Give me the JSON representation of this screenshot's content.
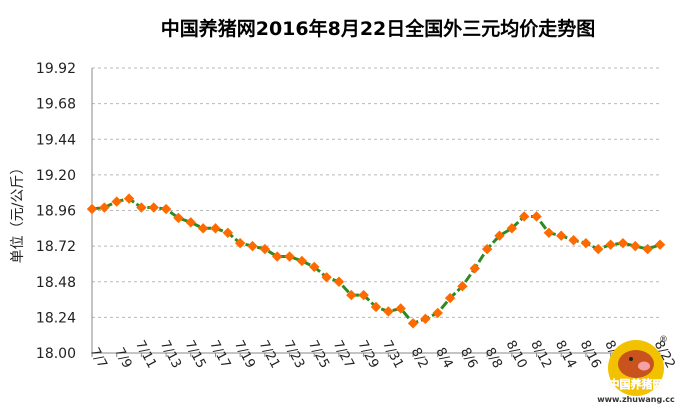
{
  "chart_data": {
    "type": "line",
    "title": "中国养猪网2016年8月22日全国外三元均价走势图",
    "ylabel": "单位（元/公斤）",
    "xlabel": "",
    "ylim": [
      18.0,
      19.92
    ],
    "yticks": [
      "18.00",
      "18.24",
      "18.48",
      "18.72",
      "18.96",
      "19.20",
      "19.44",
      "19.68",
      "19.92"
    ],
    "grid": true,
    "line_color": "#2e8b1f",
    "marker_color": "#ff6a00",
    "categories": [
      "7/7",
      "7/8",
      "7/9",
      "7/10",
      "7/11",
      "7/12",
      "7/13",
      "7/14",
      "7/15",
      "7/16",
      "7/17",
      "7/18",
      "7/19",
      "7/20",
      "7/21",
      "7/22",
      "7/23",
      "7/24",
      "7/25",
      "7/26",
      "7/27",
      "7/28",
      "7/29",
      "7/30",
      "7/31",
      "8/1",
      "8/2",
      "8/3",
      "8/4",
      "8/5",
      "8/6",
      "8/7",
      "8/8",
      "8/9",
      "8/10",
      "8/11",
      "8/12",
      "8/13",
      "8/14",
      "8/15",
      "8/16",
      "8/17",
      "8/18",
      "8/19",
      "8/20",
      "8/21",
      "8/22"
    ],
    "xtick_labels": [
      "7/7",
      "7/9",
      "7/11",
      "7/13",
      "7/15",
      "7/17",
      "7/19",
      "7/21",
      "7/23",
      "7/25",
      "7/27",
      "7/29",
      "7/31",
      "8/2",
      "8/4",
      "8/6",
      "8/8",
      "8/10",
      "8/12",
      "8/14",
      "8/16",
      "8/18",
      "8/20",
      "8/22"
    ],
    "values": [
      18.97,
      18.98,
      19.02,
      19.04,
      18.98,
      18.98,
      18.97,
      18.91,
      18.88,
      18.84,
      18.84,
      18.81,
      18.74,
      18.72,
      18.7,
      18.65,
      18.65,
      18.62,
      18.58,
      18.51,
      18.48,
      18.39,
      18.39,
      18.31,
      18.28,
      18.3,
      18.2,
      18.23,
      18.27,
      18.37,
      18.45,
      18.57,
      18.7,
      18.79,
      18.84,
      18.92,
      18.92,
      18.81,
      18.79,
      18.76,
      18.74,
      18.7,
      18.73,
      18.74,
      18.72,
      18.7,
      18.73
    ]
  },
  "watermark": {
    "brand": "中国养猪网",
    "url": "www.zhuwang.cc",
    "registered": "®"
  }
}
